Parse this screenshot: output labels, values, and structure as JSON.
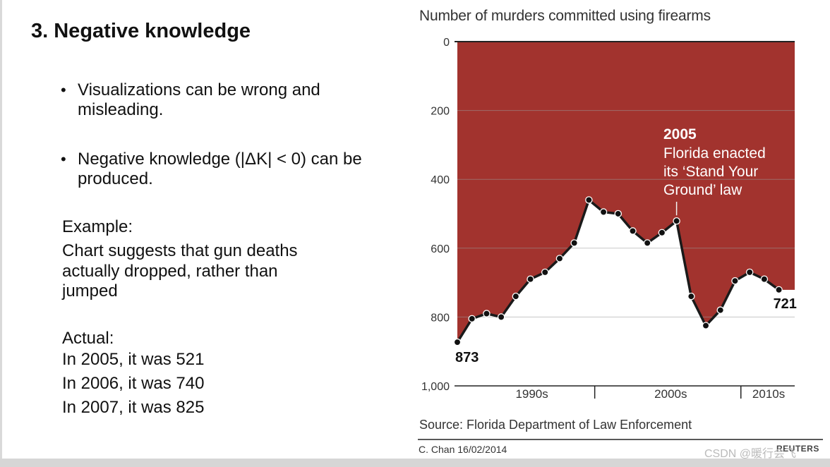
{
  "slide": {
    "title": "3. Negative knowledge",
    "bullets": [
      "Visualizations can be wrong and misleading.",
      "Negative knowledge (|ΔK| < 0) can be produced."
    ],
    "example_label": "Example:",
    "example_text": " Chart suggests that gun deaths\nactually dropped, rather than\njumped",
    "actual_label": "Actual:",
    "actual_lines": [
      "In 2005, it was 521",
      "In 2006, it was 740",
      "In 2007, it was 825"
    ]
  },
  "chart_data": {
    "type": "area",
    "title": "Number of murders committed using firearms",
    "y_axis": {
      "inverted": true,
      "ylim": [
        0,
        1000
      ],
      "ticks": [
        0,
        200,
        400,
        600,
        800,
        1000
      ],
      "tick_labels": [
        "0",
        "200",
        "400",
        "600",
        "800",
        "1,000"
      ]
    },
    "x": [
      1990,
      1991,
      1992,
      1993,
      1994,
      1995,
      1996,
      1997,
      1998,
      1999,
      2000,
      2001,
      2002,
      2003,
      2004,
      2005,
      2006,
      2007,
      2008,
      2009,
      2010,
      2011,
      2012
    ],
    "values": [
      873,
      805,
      790,
      800,
      740,
      690,
      670,
      630,
      585,
      460,
      495,
      500,
      550,
      585,
      555,
      521,
      740,
      825,
      780,
      695,
      670,
      690,
      721
    ],
    "xlim": [
      1990,
      2012.6
    ],
    "decades": [
      "1990s",
      "2000s",
      "2010s"
    ],
    "annotations": {
      "start_value": "873",
      "end_value": "721",
      "event_year": "2005",
      "event_text_1": "Florida enacted",
      "event_text_2": "its ‘Stand Your",
      "event_text_3": "Ground’ law"
    },
    "source": "Source: Florida Department of Law Enforcement",
    "credit": "C. Chan  16/02/2014",
    "brand": "REUTERS",
    "colors": {
      "fill": "#a2332e",
      "line": "#1a1a1a",
      "grid": "#9a9a9a"
    }
  },
  "watermark": "CSDN @暖行会飞"
}
